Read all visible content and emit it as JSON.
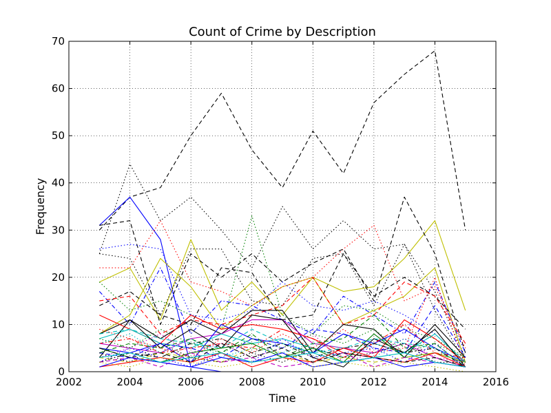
{
  "chart_data": {
    "type": "line",
    "title": "Count of Crime by Description",
    "xlabel": "Time",
    "ylabel": "Frequency",
    "xlim": [
      2002,
      2016
    ],
    "ylim": [
      0,
      70
    ],
    "xticks": [
      2002,
      2004,
      2006,
      2008,
      2010,
      2012,
      2014,
      2016
    ],
    "yticks": [
      0,
      10,
      20,
      30,
      40,
      50,
      60,
      70
    ],
    "grid": true,
    "x": [
      2003,
      2004,
      2005,
      2006,
      2007,
      2008,
      2009,
      2010,
      2011,
      2012,
      2013,
      2014,
      2015
    ],
    "series": [
      {
        "color": "#000000",
        "style": "dashed",
        "values": [
          30,
          37,
          39,
          50,
          59,
          47,
          39,
          51,
          42,
          57,
          63,
          68,
          30
        ]
      },
      {
        "color": "#0000ff",
        "style": "solid",
        "values": [
          31,
          37,
          28,
          1,
          0,
          0,
          0,
          0,
          0,
          0,
          0,
          0,
          0
        ]
      },
      {
        "color": "#000000",
        "style": "dotted",
        "values": [
          25,
          44,
          32,
          37,
          30,
          22,
          35,
          26,
          32,
          26,
          27,
          17,
          3
        ]
      },
      {
        "color": "#bfbf00",
        "style": "solid",
        "values": [
          19,
          22,
          11,
          28,
          13,
          19,
          12,
          20,
          17,
          18,
          24,
          32,
          13
        ]
      },
      {
        "color": "#bfbf00",
        "style": "solid",
        "values": [
          8,
          12,
          24,
          18,
          9,
          14,
          18,
          20,
          10,
          13,
          16,
          22,
          2
        ]
      },
      {
        "color": "#ff0000",
        "style": "dotted",
        "values": [
          22,
          22,
          32,
          19,
          17,
          14,
          18,
          20,
          26,
          31,
          15,
          18,
          5
        ]
      },
      {
        "color": "#000000",
        "style": "dashed",
        "values": [
          31,
          32,
          10,
          25,
          20,
          25,
          19,
          23,
          26,
          15,
          37,
          25,
          4
        ]
      },
      {
        "color": "#008000",
        "style": "dotted",
        "values": [
          19,
          13,
          15,
          12,
          9,
          33,
          12,
          8,
          14,
          13,
          9,
          7,
          3
        ]
      },
      {
        "color": "#0000ff",
        "style": "dotted",
        "values": [
          26,
          27,
          26,
          12,
          11,
          13,
          19,
          14,
          13,
          15,
          12,
          8,
          2
        ]
      },
      {
        "color": "#000000",
        "style": "dotted",
        "values": [
          25,
          24,
          12,
          26,
          26,
          15,
          14,
          24,
          25,
          14,
          27,
          13,
          2
        ]
      },
      {
        "color": "#0000ff",
        "style": "dashdot",
        "values": [
          17,
          10,
          22,
          8,
          15,
          14,
          11,
          8,
          16,
          12,
          8,
          19,
          4
        ]
      },
      {
        "color": "#000000",
        "style": "dashed",
        "values": [
          14,
          17,
          12,
          10,
          22,
          21,
          11,
          12,
          25,
          16,
          20,
          16,
          9
        ]
      },
      {
        "color": "#ff0000",
        "style": "dashed",
        "values": [
          15,
          16,
          8,
          11,
          10,
          12,
          14,
          20,
          10,
          12,
          19,
          16,
          6
        ]
      },
      {
        "color": "#000000",
        "style": "solid",
        "values": [
          8,
          11,
          7,
          11,
          8,
          13,
          13,
          4,
          10,
          9,
          3,
          10,
          3
        ]
      },
      {
        "color": "#ff0000",
        "style": "solid",
        "values": [
          12,
          9,
          6,
          12,
          9,
          10,
          9,
          7,
          4,
          3,
          11,
          7,
          2
        ]
      },
      {
        "color": "#bf00bf",
        "style": "solid",
        "values": [
          6,
          5,
          4,
          7,
          8,
          11,
          11,
          6,
          5,
          4,
          6,
          3,
          1
        ]
      },
      {
        "color": "#00bfbf",
        "style": "solid",
        "values": [
          7,
          9,
          6,
          5,
          8,
          6,
          7,
          5,
          3,
          6,
          4,
          8,
          2
        ]
      },
      {
        "color": "#000000",
        "style": "solid",
        "values": [
          3,
          11,
          5,
          9,
          5,
          12,
          11,
          3,
          1,
          7,
          4,
          9,
          1
        ]
      },
      {
        "color": "#0000ff",
        "style": "solid",
        "values": [
          5,
          4,
          6,
          2,
          10,
          7,
          6,
          4,
          8,
          6,
          9,
          5,
          2
        ]
      },
      {
        "color": "#008000",
        "style": "dashed",
        "values": [
          4,
          6,
          5,
          7,
          4,
          8,
          3,
          6,
          7,
          12,
          5,
          6,
          1
        ]
      },
      {
        "color": "#ff0000",
        "style": "dashdot",
        "values": [
          6,
          7,
          4,
          5,
          6,
          5,
          9,
          7,
          3,
          6,
          10,
          4,
          3
        ]
      },
      {
        "color": "#00bfbf",
        "style": "dashed",
        "values": [
          8,
          9,
          7,
          6,
          5,
          9,
          6,
          4,
          5,
          7,
          6,
          5,
          1
        ]
      },
      {
        "color": "#bf00bf",
        "style": "dotted",
        "values": [
          3,
          5,
          8,
          4,
          6,
          3,
          5,
          8,
          2,
          4,
          7,
          3,
          2
        ]
      },
      {
        "color": "#0000ff",
        "style": "dashed",
        "values": [
          4,
          3,
          6,
          5,
          3,
          7,
          5,
          9,
          8,
          5,
          4,
          14,
          3
        ]
      },
      {
        "color": "#000000",
        "style": "dashdot",
        "values": [
          2,
          4,
          3,
          6,
          7,
          4,
          6,
          3,
          5,
          6,
          4,
          5,
          1
        ]
      },
      {
        "color": "#008000",
        "style": "solid",
        "values": [
          5,
          3,
          2,
          4,
          5,
          6,
          3,
          5,
          2,
          8,
          3,
          4,
          2
        ]
      },
      {
        "color": "#ff0000",
        "style": "dotted",
        "values": [
          9,
          7,
          5,
          3,
          7,
          4,
          8,
          5,
          9,
          4,
          5,
          20,
          1
        ]
      },
      {
        "color": "#bfbf00",
        "style": "dashed",
        "values": [
          3,
          2,
          4,
          3,
          2,
          5,
          4,
          2,
          3,
          2,
          3,
          4,
          2
        ]
      },
      {
        "color": "#0000ff",
        "style": "dotted",
        "values": [
          2,
          5,
          3,
          1,
          4,
          2,
          7,
          3,
          4,
          5,
          2,
          6,
          1
        ]
      },
      {
        "color": "#000000",
        "style": "dotted",
        "values": [
          4,
          2,
          6,
          3,
          2,
          4,
          2,
          5,
          3,
          4,
          6,
          2,
          2
        ]
      },
      {
        "color": "#00bfbf",
        "style": "dotted",
        "values": [
          6,
          8,
          4,
          7,
          3,
          5,
          4,
          6,
          5,
          3,
          7,
          5,
          2
        ]
      },
      {
        "color": "#bf00bf",
        "style": "dashed",
        "values": [
          2,
          3,
          1,
          4,
          2,
          3,
          1,
          2,
          4,
          1,
          3,
          2,
          1
        ]
      },
      {
        "color": "#ff0000",
        "style": "solid",
        "values": [
          1,
          2,
          3,
          2,
          4,
          1,
          3,
          2,
          5,
          3,
          2,
          4,
          1
        ]
      },
      {
        "color": "#008000",
        "style": "dotted",
        "values": [
          7,
          5,
          9,
          6,
          4,
          7,
          5,
          8,
          6,
          9,
          4,
          6,
          3
        ]
      },
      {
        "color": "#0000ff",
        "style": "solid",
        "values": [
          1,
          3,
          2,
          1,
          3,
          2,
          4,
          1,
          2,
          3,
          1,
          2,
          1
        ]
      },
      {
        "color": "#000000",
        "style": "dashed",
        "values": [
          5,
          3,
          4,
          2,
          6,
          3,
          5,
          2,
          4,
          3,
          2,
          3,
          1
        ]
      },
      {
        "color": "#bfbf00",
        "style": "dotted",
        "values": [
          2,
          1,
          3,
          2,
          1,
          2,
          3,
          1,
          2,
          1,
          2,
          1,
          0
        ]
      },
      {
        "color": "#00bfbf",
        "style": "solid",
        "values": [
          3,
          4,
          2,
          3,
          4,
          2,
          3,
          4,
          2,
          3,
          4,
          2,
          1
        ]
      }
    ]
  }
}
